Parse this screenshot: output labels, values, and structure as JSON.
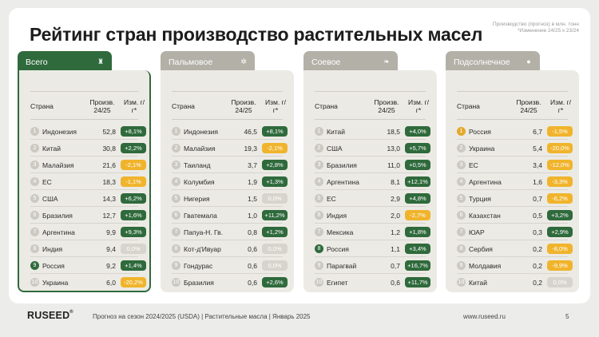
{
  "title": "Рейтинг стран производство растительных масел",
  "note_line1": "Производство (прогноз) в млн. тонн",
  "note_line2": "*Изменение 24/25 к 23/24",
  "headers": {
    "country": "Страна",
    "prod": "Произв. 24/25",
    "chg": "Изм. г/г*"
  },
  "panels": [
    {
      "tab": "Всего",
      "icon": "bottle-icon",
      "glyph": "♜",
      "active": true,
      "rows": [
        {
          "rank": "1",
          "country": "Индонезия",
          "prod": "52,8",
          "chg": "+8,1%",
          "type": "pos"
        },
        {
          "rank": "2",
          "country": "Китай",
          "prod": "30,8",
          "chg": "+2,2%",
          "type": "pos"
        },
        {
          "rank": "3",
          "country": "Малайзия",
          "prod": "21,6",
          "chg": "-2,1%",
          "type": "neg"
        },
        {
          "rank": "4",
          "country": "ЕС",
          "prod": "18,3",
          "chg": "-1,1%",
          "type": "neg"
        },
        {
          "rank": "5",
          "country": "США",
          "prod": "14,3",
          "chg": "+6,2%",
          "type": "pos"
        },
        {
          "rank": "6",
          "country": "Бразилия",
          "prod": "12,7",
          "chg": "+1,6%",
          "type": "pos"
        },
        {
          "rank": "7",
          "country": "Аргентина",
          "prod": "9,9",
          "chg": "+9,3%",
          "type": "pos"
        },
        {
          "rank": "8",
          "country": "Индия",
          "prod": "9,4",
          "chg": "0,0%",
          "type": "zero"
        },
        {
          "rank": "9",
          "country": "Россия",
          "prod": "9,2",
          "chg": "+1,4%",
          "type": "pos",
          "hl": "hl"
        },
        {
          "rank": "10",
          "country": "Украина",
          "prod": "6,0",
          "chg": "-20,2%",
          "type": "neg"
        }
      ]
    },
    {
      "tab": "Пальмовое",
      "icon": "palm-icon",
      "glyph": "✲",
      "active": false,
      "rows": [
        {
          "rank": "1",
          "country": "Индонезия",
          "prod": "46,5",
          "chg": "+8,1%",
          "type": "pos"
        },
        {
          "rank": "2",
          "country": "Малайзия",
          "prod": "19,3",
          "chg": "-2,1%",
          "type": "neg"
        },
        {
          "rank": "3",
          "country": "Таиланд",
          "prod": "3,7",
          "chg": "+2,8%",
          "type": "pos"
        },
        {
          "rank": "4",
          "country": "Колумбия",
          "prod": "1,9",
          "chg": "+1,3%",
          "type": "pos"
        },
        {
          "rank": "5",
          "country": "Нигерия",
          "prod": "1,5",
          "chg": "0,0%",
          "type": "zero"
        },
        {
          "rank": "6",
          "country": "Гватемала",
          "prod": "1,0",
          "chg": "+11,2%",
          "type": "pos"
        },
        {
          "rank": "7",
          "country": "Папуа-Н. Гв.",
          "prod": "0,8",
          "chg": "+1,2%",
          "type": "pos"
        },
        {
          "rank": "8",
          "country": "Кот-д'Ивуар",
          "prod": "0,6",
          "chg": "0,0%",
          "type": "zero"
        },
        {
          "rank": "9",
          "country": "Гондурас",
          "prod": "0,6",
          "chg": "0,0%",
          "type": "zero"
        },
        {
          "rank": "10",
          "country": "Бразилия",
          "prod": "0,6",
          "chg": "+2,6%",
          "type": "pos"
        }
      ]
    },
    {
      "tab": "Соевое",
      "icon": "soy-icon",
      "glyph": "❧",
      "active": false,
      "rows": [
        {
          "rank": "1",
          "country": "Китай",
          "prod": "18,5",
          "chg": "+4,0%",
          "type": "pos"
        },
        {
          "rank": "2",
          "country": "США",
          "prod": "13,0",
          "chg": "+5,7%",
          "type": "pos"
        },
        {
          "rank": "3",
          "country": "Бразилия",
          "prod": "11,0",
          "chg": "+0,5%",
          "type": "pos"
        },
        {
          "rank": "4",
          "country": "Аргентина",
          "prod": "8,1",
          "chg": "+12,1%",
          "type": "pos"
        },
        {
          "rank": "5",
          "country": "ЕС",
          "prod": "2,9",
          "chg": "+4,8%",
          "type": "pos"
        },
        {
          "rank": "6",
          "country": "Индия",
          "prod": "2,0",
          "chg": "-2,7%",
          "type": "neg"
        },
        {
          "rank": "7",
          "country": "Мексика",
          "prod": "1,2",
          "chg": "+1,8%",
          "type": "pos"
        },
        {
          "rank": "8",
          "country": "Россия",
          "prod": "1,1",
          "chg": "+3,4%",
          "type": "pos",
          "hl": "hl"
        },
        {
          "rank": "9",
          "country": "Парагвай",
          "prod": "0,7",
          "chg": "+16,7%",
          "type": "pos"
        },
        {
          "rank": "10",
          "country": "Египет",
          "prod": "0,6",
          "chg": "+11,7%",
          "type": "pos"
        }
      ]
    },
    {
      "tab": "Подсолнечное",
      "icon": "sunflower-icon",
      "glyph": "●",
      "active": false,
      "rows": [
        {
          "rank": "1",
          "country": "Россия",
          "prod": "6,7",
          "chg": "-1,5%",
          "type": "neg",
          "hl": "hly"
        },
        {
          "rank": "2",
          "country": "Украина",
          "prod": "5,4",
          "chg": "-20,0%",
          "type": "neg"
        },
        {
          "rank": "3",
          "country": "ЕС",
          "prod": "3,4",
          "chg": "-12,0%",
          "type": "neg"
        },
        {
          "rank": "4",
          "country": "Аргентина",
          "prod": "1,6",
          "chg": "-3,3%",
          "type": "neg"
        },
        {
          "rank": "5",
          "country": "Турция",
          "prod": "0,7",
          "chg": "-6,2%",
          "type": "neg"
        },
        {
          "rank": "6",
          "country": "Казахстан",
          "prod": "0,5",
          "chg": "+3,2%",
          "type": "pos"
        },
        {
          "rank": "7",
          "country": "ЮАР",
          "prod": "0,3",
          "chg": "+2,9%",
          "type": "pos"
        },
        {
          "rank": "8",
          "country": "Сербия",
          "prod": "0,2",
          "chg": "-8,0%",
          "type": "neg"
        },
        {
          "rank": "9",
          "country": "Молдавия",
          "prod": "0,2",
          "chg": "-9,9%",
          "type": "neg"
        },
        {
          "rank": "10",
          "country": "Китай",
          "prod": "0,2",
          "chg": "0,0%",
          "type": "zero"
        }
      ]
    }
  ],
  "footer": {
    "logo": "RUSEED",
    "reg": "®",
    "text": "Прогноз на сезон 2024/2025 (USDA)  |  Растительные масла  |  Январь 2025",
    "url": "www.ruseed.ru",
    "page": "5"
  }
}
